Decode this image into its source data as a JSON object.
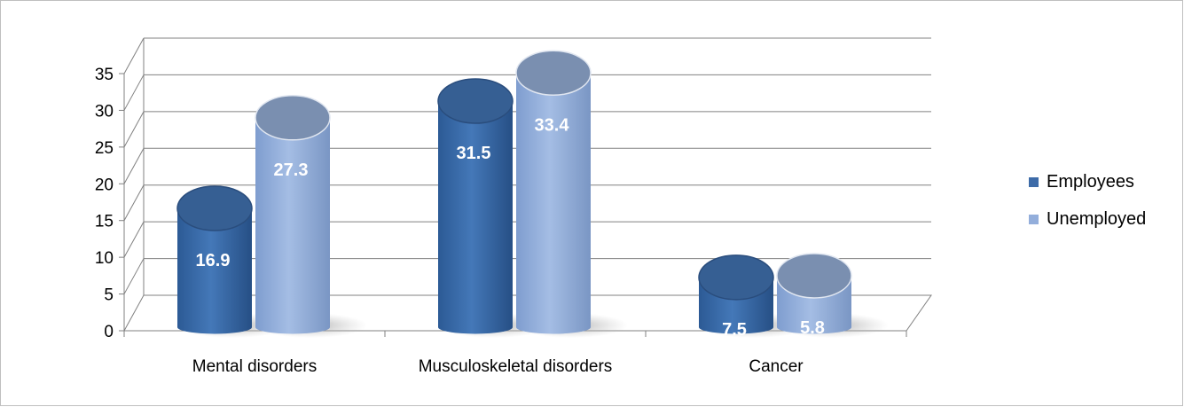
{
  "chart_data": {
    "type": "bar",
    "style": "3d-cylinder",
    "categories": [
      "Mental disorders",
      "Musculoskeletal disorders",
      "Cancer"
    ],
    "series": [
      {
        "name": "Employees",
        "values": [
          16.9,
          31.5,
          7.5
        ],
        "color": "#3d6ba8"
      },
      {
        "name": "Unemployed",
        "values": [
          27.3,
          33.4,
          5.8
        ],
        "color": "#93aedb"
      }
    ],
    "data_labels": [
      [
        "16.9",
        "31.5",
        "7.5"
      ],
      [
        "27.3",
        "33.4",
        "5.8"
      ]
    ],
    "ylim": [
      0,
      35
    ],
    "y_ticks": [
      "0",
      "5",
      "10",
      "15",
      "20",
      "25",
      "30",
      "35"
    ],
    "grid": true,
    "legend": {
      "position": "right",
      "entries": [
        "Employees",
        "Unemployed"
      ]
    }
  }
}
